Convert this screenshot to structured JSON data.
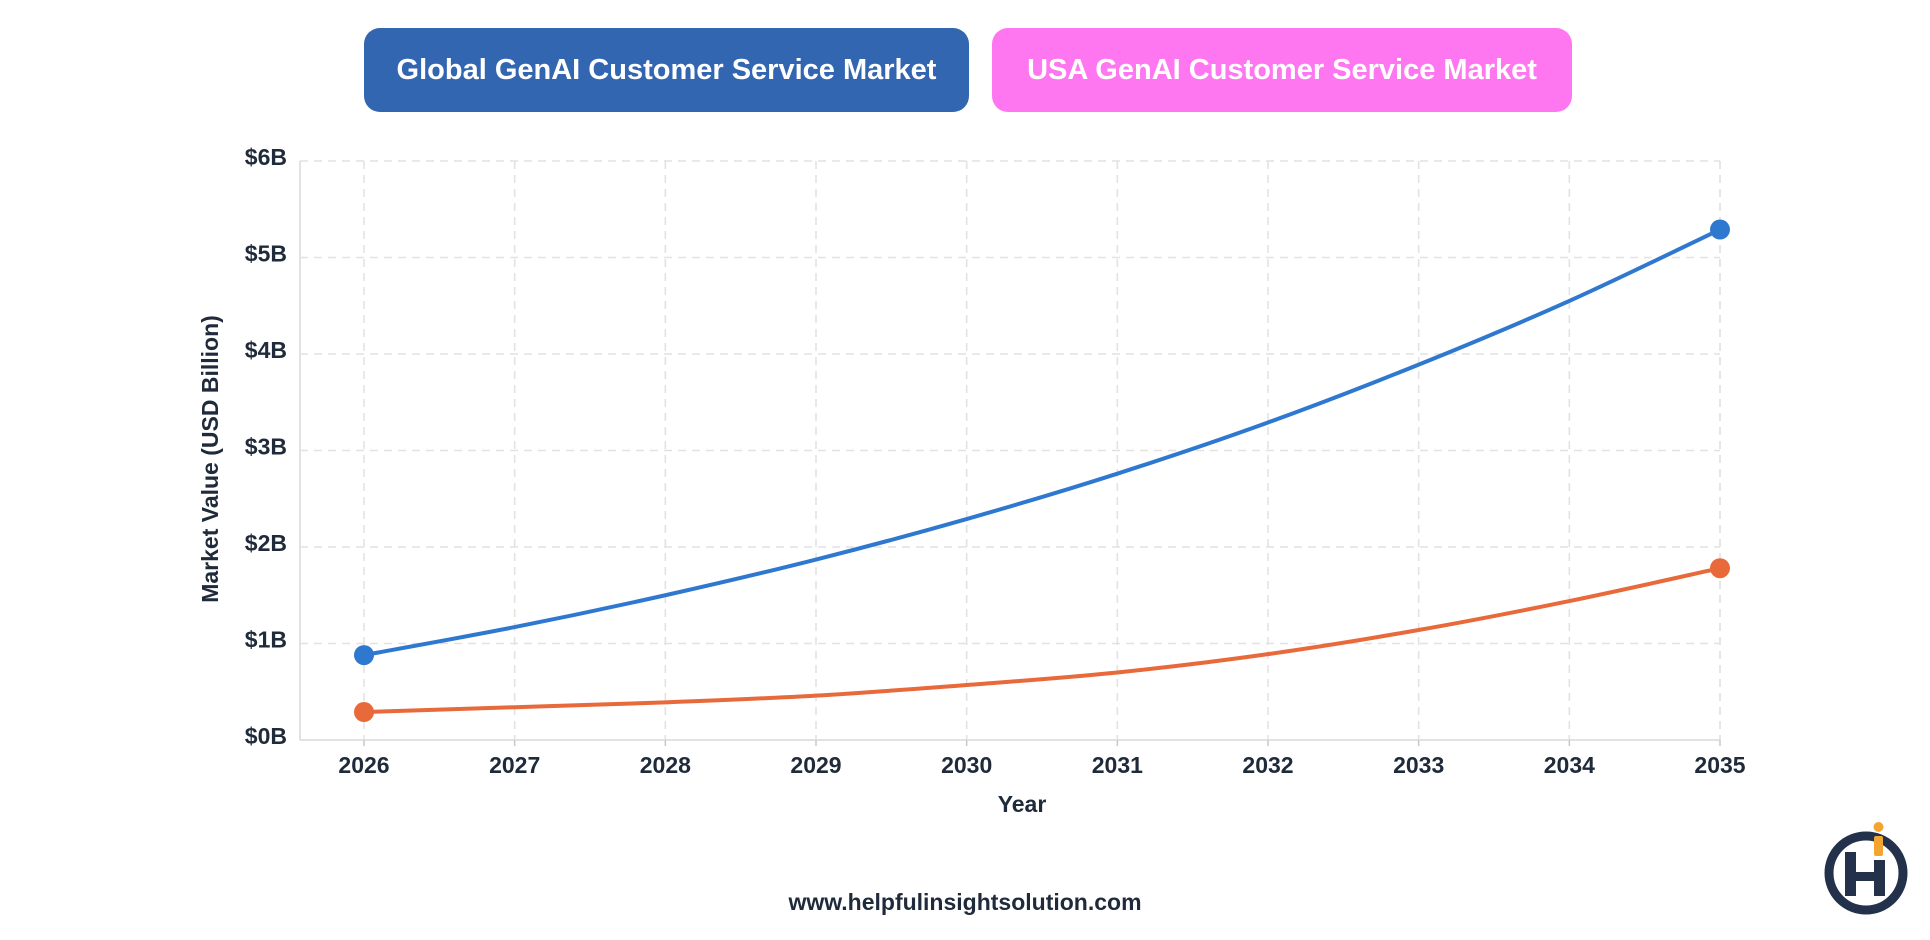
{
  "legend": {
    "global_label": "Global GenAI Customer Service Market",
    "usa_label": "USA GenAI Customer Service Market"
  },
  "footer": {
    "url": "www.helpfulinsightsolution.com"
  },
  "colors": {
    "global_line": "#2f78d0",
    "usa_line": "#e8693a",
    "global_legend": "#3366b0",
    "usa_legend": "#ff77f0"
  },
  "chart_data": {
    "type": "line",
    "xlabel": "Year",
    "ylabel": "Market Value (USD Billion)",
    "x": [
      "2026",
      "2027",
      "2028",
      "2029",
      "2030",
      "2031",
      "2032",
      "2033",
      "2034",
      "2035"
    ],
    "ylim": [
      0,
      6
    ],
    "yticks": [
      "$0B",
      "$1B",
      "$2B",
      "$3B",
      "$4B",
      "$5B",
      "$6B"
    ],
    "grid": true,
    "series": [
      {
        "name": "Global GenAI Customer Service Market",
        "values": [
          0.88,
          1.17,
          1.5,
          1.87,
          2.29,
          2.76,
          3.29,
          3.89,
          4.55,
          5.29
        ],
        "color": "#2f78d0"
      },
      {
        "name": "USA GenAI Customer Service Market",
        "values": [
          0.29,
          0.34,
          0.39,
          0.46,
          0.57,
          0.7,
          0.89,
          1.14,
          1.44,
          1.78
        ],
        "color": "#e8693a"
      }
    ]
  }
}
